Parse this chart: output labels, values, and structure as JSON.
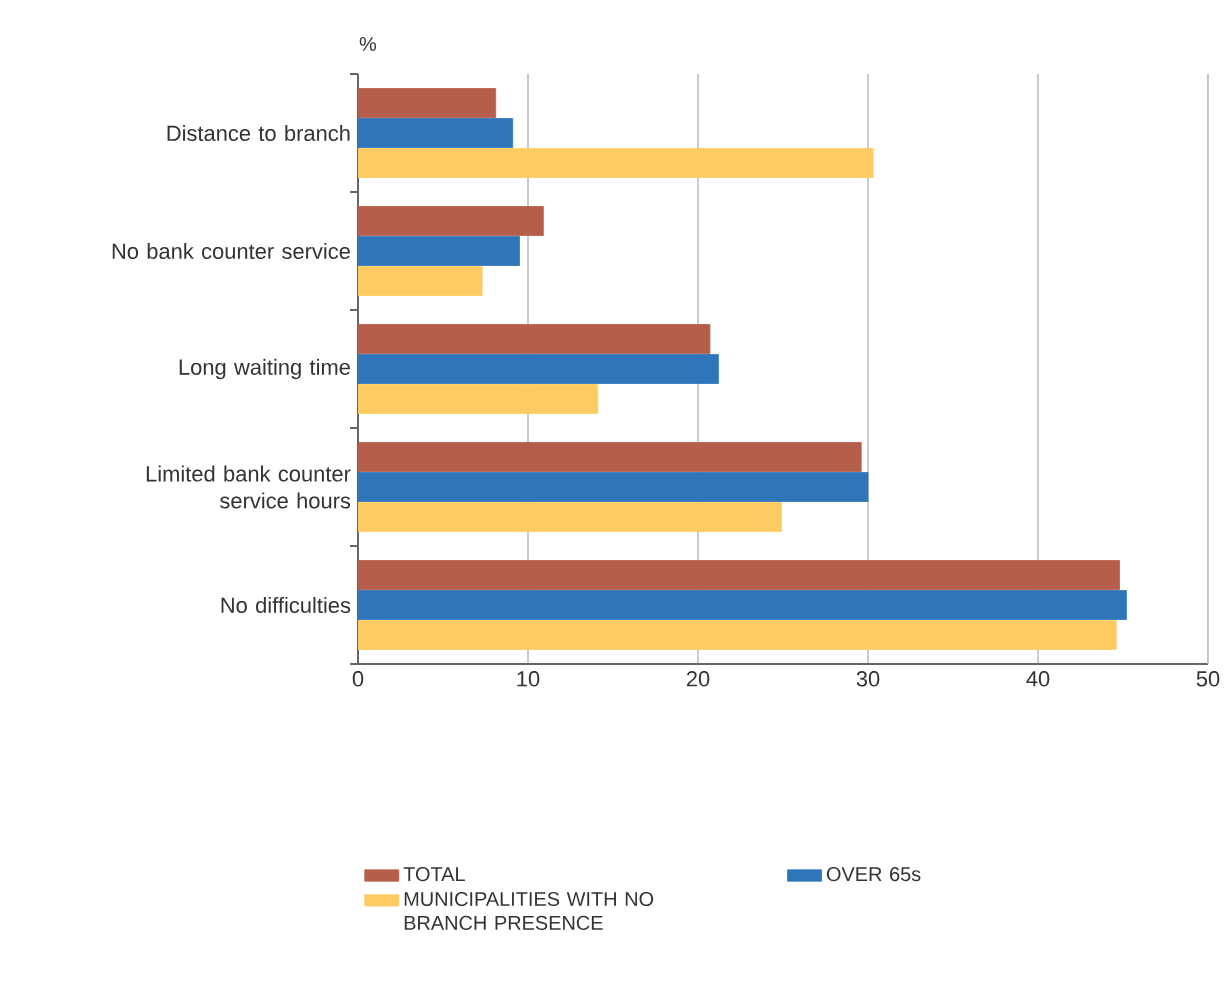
{
  "chart_data": {
    "type": "bar",
    "orientation": "horizontal",
    "xlabel": "%",
    "categories": [
      "Distance to branch",
      "No bank counter service",
      "Long waiting time",
      "Limited bank counter service hours",
      "No difficulties"
    ],
    "series": [
      {
        "name": "TOTAL",
        "color": "#b55e4a",
        "values": [
          8.1,
          10.9,
          20.7,
          29.6,
          44.8
        ]
      },
      {
        "name": "OVER 65s",
        "color": "#2e75b9",
        "values": [
          9.1,
          9.5,
          21.2,
          30.0,
          45.2
        ]
      },
      {
        "name": "MUNICIPALITIES WITH NO BRANCH PRESENCE",
        "color": "#fecb62",
        "values": [
          30.3,
          7.3,
          14.1,
          24.9,
          44.6
        ]
      }
    ],
    "xlim": [
      0,
      50
    ],
    "xticks": [
      0,
      10,
      20,
      30,
      40,
      50
    ],
    "grid": "x",
    "legend": "bottom"
  }
}
